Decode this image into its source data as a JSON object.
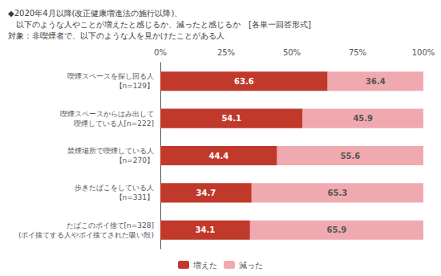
{
  "chart_data": {
    "type": "bar",
    "orientation": "horizontal",
    "stacked": true,
    "data_labels": true,
    "grid": false,
    "legend": "bottom",
    "title": "◆2020年4月以降(改正健康増進法の施行以降)、\n　以下のような人やことが増えたと感じるか、減ったと感じるか　[各単一回答形式]\n対象：非喫煙者で、以下のような人を見かけたことがある人",
    "categories": [
      "喫煙スペースを探し回る人\n【n=129】",
      "喫煙スペースからはみ出して\n喫煙している人[n=222]",
      "禁煙場所で喫煙している人\n【n=270】",
      "歩きたばこをしている人\n【n=331】",
      "たばこのポイ捨て[n=328]\n(ポイ捨てする人やポイ捨てされた吸い殻)"
    ],
    "series": [
      {
        "name": "増えた",
        "color": "#c0392b",
        "values": [
          63.6,
          54.1,
          44.4,
          34.7,
          34.1
        ]
      },
      {
        "name": "減った",
        "color": "#f1a9b0",
        "values": [
          36.4,
          45.9,
          55.6,
          65.3,
          65.9
        ]
      }
    ],
    "xlim": [
      0,
      100
    ],
    "xticks": [
      {
        "value": 0,
        "label": "0%"
      },
      {
        "value": 25,
        "label": "25%"
      },
      {
        "value": 50,
        "label": "50%"
      },
      {
        "value": 75,
        "label": "75%"
      },
      {
        "value": 100,
        "label": "100%"
      }
    ]
  }
}
